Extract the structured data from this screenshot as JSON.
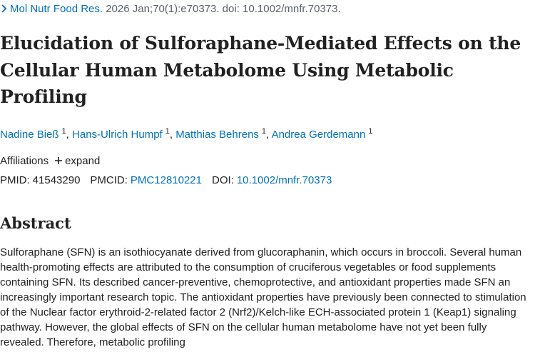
{
  "citation": {
    "journal": "Mol Nutr Food Res.",
    "details": "2026 Jan;70(1):e70373. doi: 10.1002/mnfr.70373."
  },
  "title": "Elucidation of Sulforaphane-Mediated Effects on the Cellular Human Metabolome Using Metabolic Profiling",
  "authors": {
    "separator": ",",
    "list": [
      {
        "name": "Nadine Bieß",
        "affiliation": "1"
      },
      {
        "name": "Hans-Ulrich Humpf",
        "affiliation": "1"
      },
      {
        "name": "Matthias Behrens",
        "affiliation": "1"
      },
      {
        "name": "Andrea Gerdemann",
        "affiliation": "1"
      }
    ]
  },
  "affiliations": {
    "label": "Affiliations",
    "toggle": "expand"
  },
  "identifiers": [
    {
      "label": "PMID:",
      "value": "41543290"
    },
    {
      "label": "PMCID:",
      "value": "PMC12810221"
    },
    {
      "label": "DOI:",
      "value": "10.1002/mnfr.70373"
    }
  ],
  "abstract": {
    "heading": "Abstract",
    "text": "Sulforaphane (SFN) is an isothiocyanate derived from glucoraphanin, which occurs in broccoli. Several human health-promoting effects are attributed to the consumption of cruciferous vegetables or food supplements containing SFN. Its described cancer-preventive, chemoprotective, and antioxidant properties made SFN an increasingly important research topic. The antioxidant properties have previously been connected to stimulation of the Nuclear factor erythroid-2-related factor 2 (Nrf2)/Kelch-like ECH-associated protein 1 (Keap1) signaling pathway. However, the global effects of SFN on the cellular human metabolome have not yet been fully revealed. Therefore, metabolic profiling"
  }
}
